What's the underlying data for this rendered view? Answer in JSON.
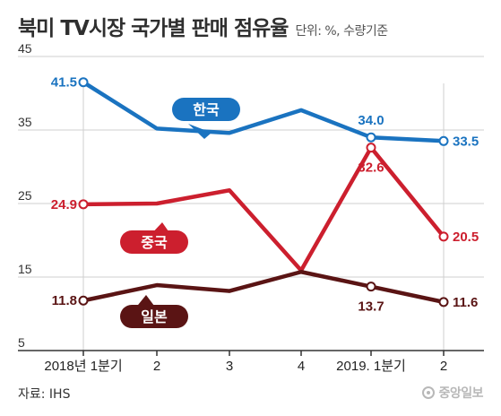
{
  "header": {
    "title": "북미 TV시장 국가별 판매 점유율",
    "subtitle": "단위: %, 수량기준"
  },
  "footer": {
    "source": "자료: IHS",
    "logo_text": "중앙일보"
  },
  "colors": {
    "korea": "#1a73c0",
    "china": "#cc1f2e",
    "japan": "#5a1414",
    "grid": "#cfcfcf",
    "axis": "#333333"
  },
  "chart_data": {
    "type": "line",
    "title": "북미 TV시장 국가별 판매 점유율",
    "subtitle": "단위: %, 수량기준",
    "categories": [
      "2018년 1분기",
      "2",
      "3",
      "4",
      "2019. 1분기",
      "2"
    ],
    "ylim": [
      5,
      45
    ],
    "yticks": [
      5,
      15,
      25,
      35,
      45
    ],
    "grid": true,
    "series": [
      {
        "name": "한국",
        "key": "korea",
        "values": [
          41.5,
          35.2,
          34.6,
          37.7,
          34.0,
          33.5
        ],
        "labels": {
          "0": "41.5",
          "4": "34.0",
          "5": "33.5"
        },
        "markers": [
          0,
          4,
          5
        ]
      },
      {
        "name": "중국",
        "key": "china",
        "values": [
          24.9,
          25.0,
          26.8,
          15.9,
          32.6,
          20.5
        ],
        "labels": {
          "0": "24.9",
          "4": "32.6",
          "5": "20.5"
        },
        "markers": [
          0,
          4,
          5
        ]
      },
      {
        "name": "일본",
        "key": "japan",
        "values": [
          11.8,
          13.9,
          13.1,
          15.7,
          13.7,
          11.6
        ],
        "labels": {
          "0": "11.8",
          "4": "13.7",
          "5": "11.6"
        },
        "markers": [
          0,
          4,
          5
        ]
      }
    ]
  }
}
